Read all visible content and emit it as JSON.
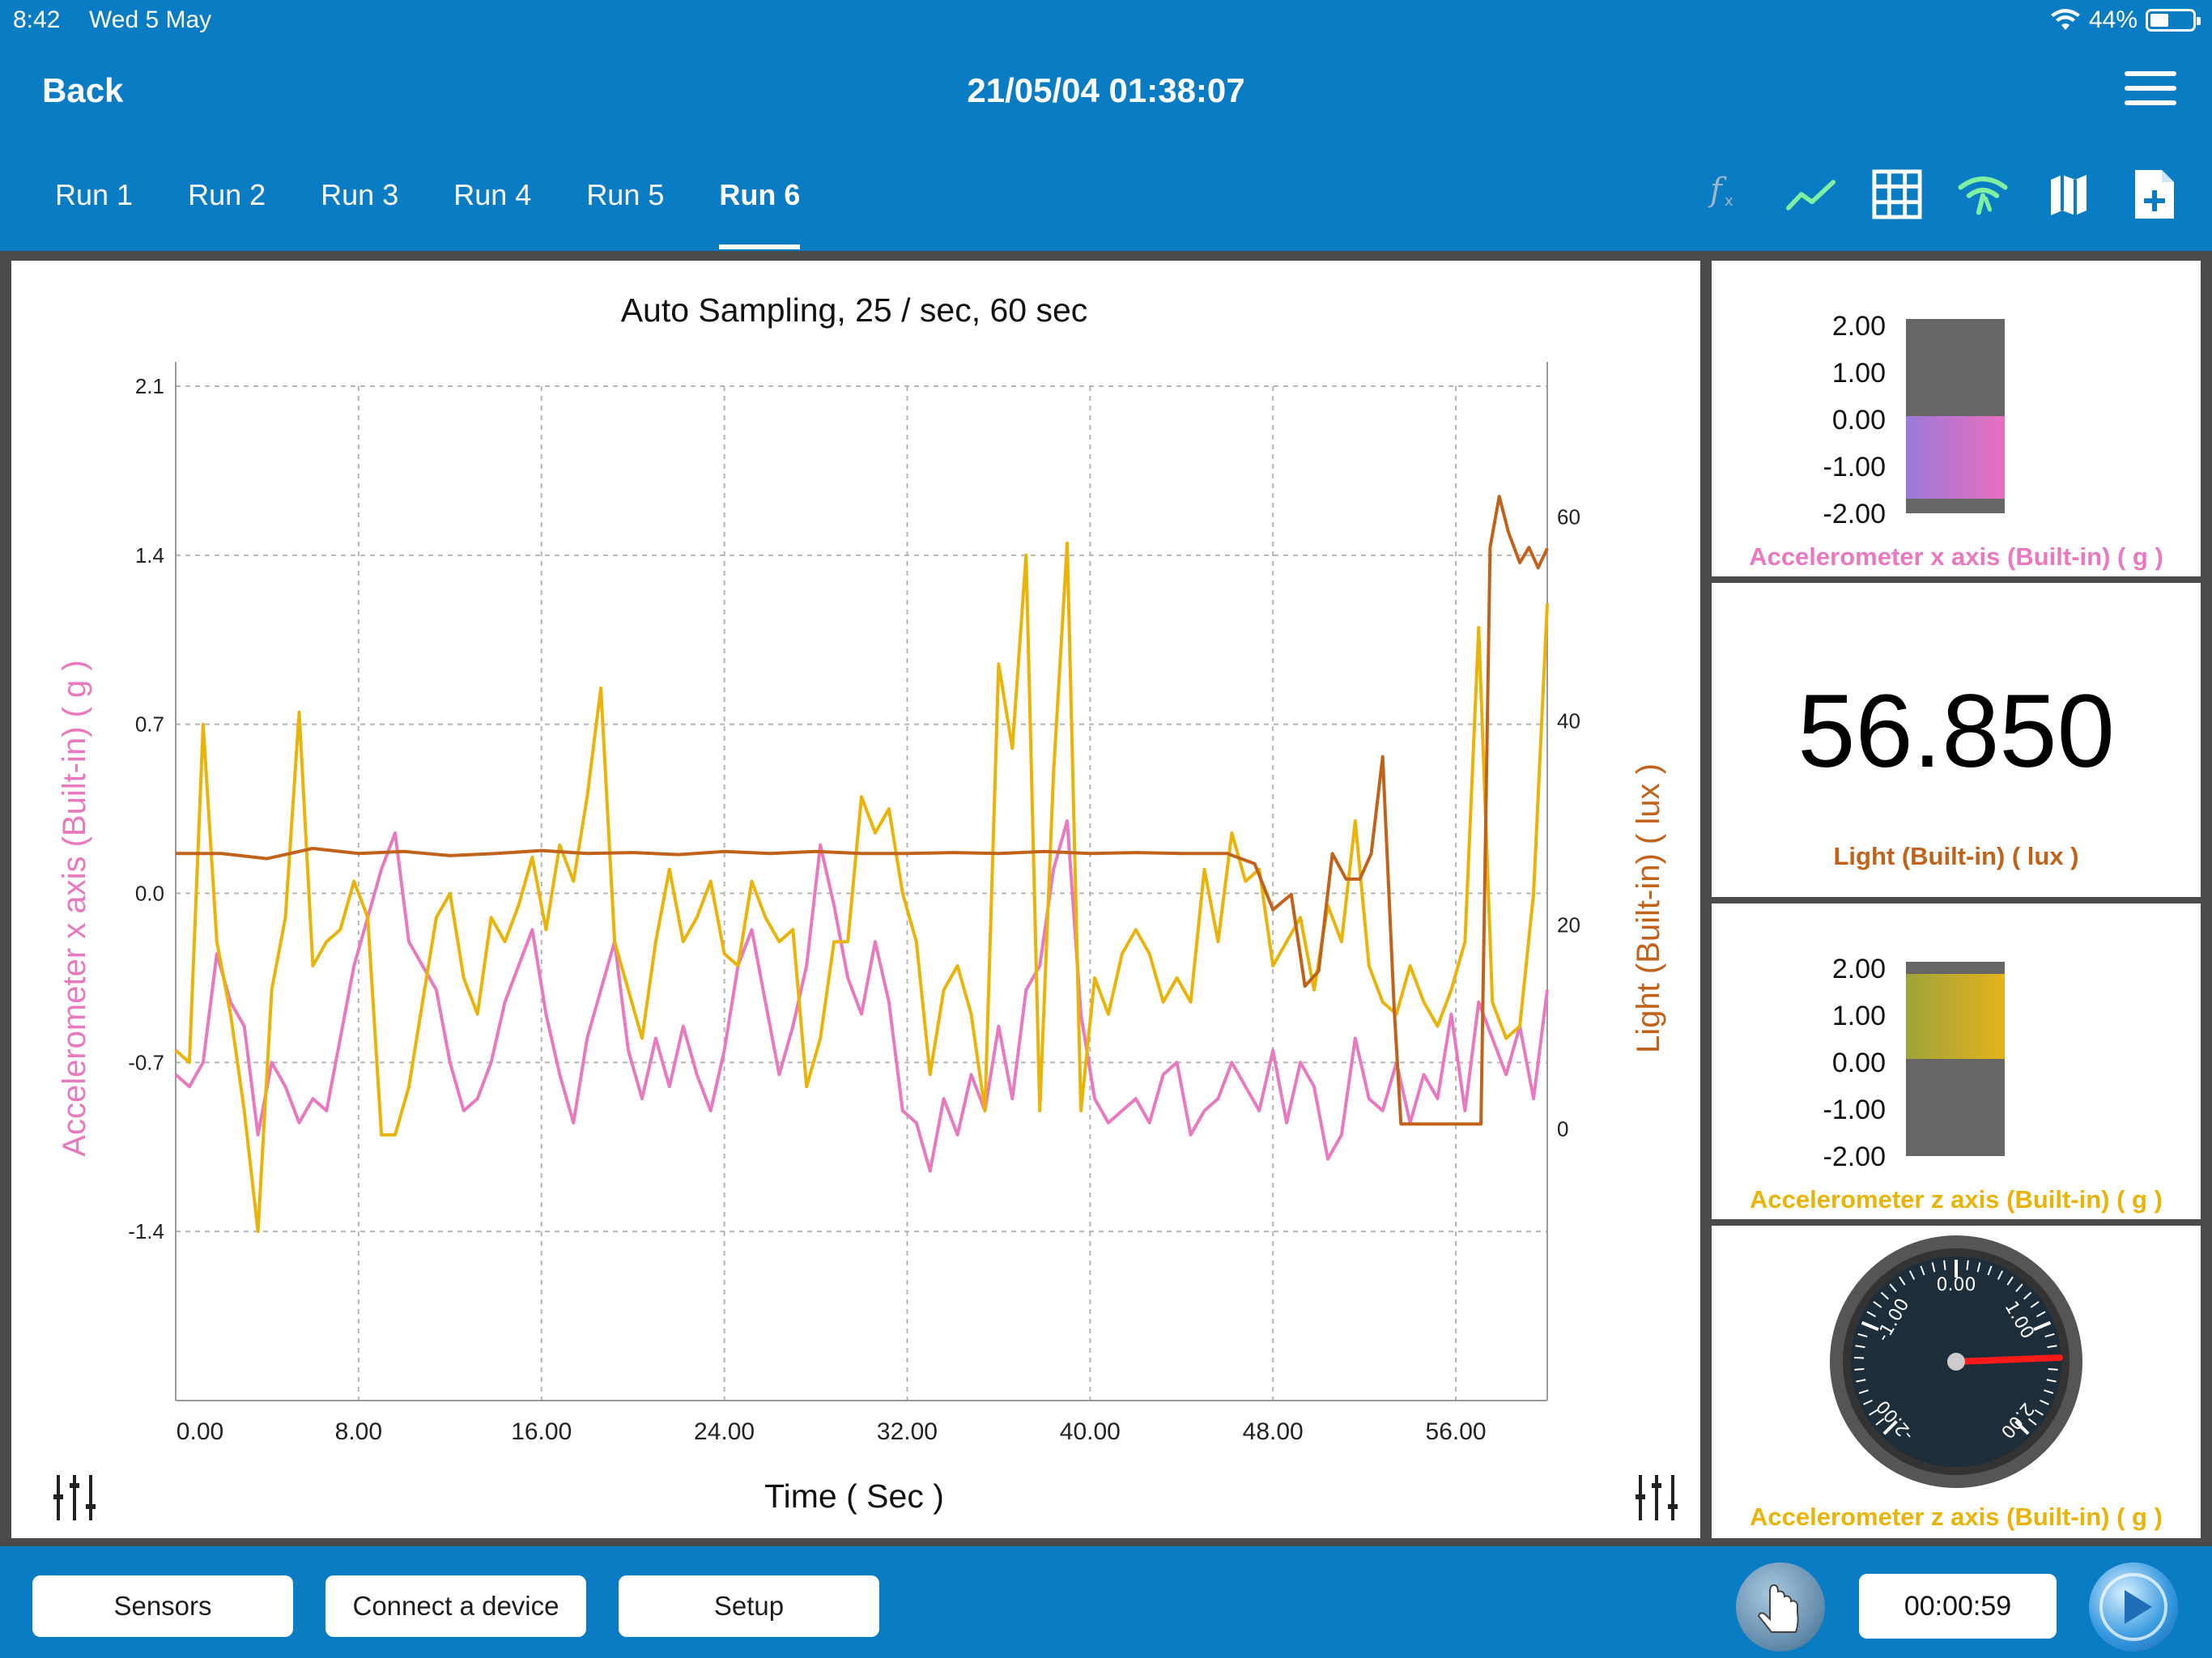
{
  "status": {
    "time": "8:42",
    "date": "Wed 5 May",
    "battery": "44%"
  },
  "nav": {
    "back": "Back",
    "title": "21/05/04 01:38:07"
  },
  "tabs": [
    {
      "label": "Run 1"
    },
    {
      "label": "Run 2"
    },
    {
      "label": "Run 3"
    },
    {
      "label": "Run 4"
    },
    {
      "label": "Run 5"
    },
    {
      "label": "Run 6"
    }
  ],
  "active_tab": 5,
  "toolbar": [
    "function-icon",
    "line-graph-icon",
    "table-grid-icon",
    "wireless-icon",
    "map-icon",
    "new-file-icon"
  ],
  "widgets": {
    "accel_x": {
      "label": "Accelerometer x axis (Built-in) ( g )",
      "ticks": [
        "2.00",
        "1.00",
        "0.00",
        "-1.00",
        "-2.00"
      ],
      "value": -1.7
    },
    "light": {
      "value_text": "56.850",
      "label": "Light (Built-in) ( lux )"
    },
    "accel_z_bar": {
      "label": "Accelerometer z axis (Built-in) ( g )",
      "ticks": [
        "2.00",
        "1.00",
        "0.00",
        "-1.00",
        "-2.00"
      ],
      "value": 1.75
    },
    "accel_z_gauge": {
      "label": "Accelerometer z axis (Built-in) ( g )",
      "ticks": [
        "0.00",
        "-1.00",
        "1.00",
        "-2.00",
        "2.00"
      ],
      "value": 1.3
    }
  },
  "bottom": {
    "sensors": "Sensors",
    "connect": "Connect a device",
    "setup": "Setup",
    "timer": "00:00:59"
  },
  "colors": {
    "accel_x": "#e879be",
    "accel_z": "#eab308",
    "light": "#c2621a",
    "brand": "#0a7cc4"
  },
  "chart_data": {
    "type": "line",
    "title": "Auto Sampling,  25 / sec,  60 sec",
    "xlabel": "Time ( Sec )",
    "ylabel_left": "Accelerometer x axis (Built-in) ( g )",
    "ylabel_right": "Light (Built-in) ( lux )",
    "xlim": [
      0,
      60
    ],
    "ylim_left": [
      -2.1,
      2.1
    ],
    "ylim_right": [
      -26.6,
      72.8
    ],
    "x_ticks": [
      "0.00",
      "8.00",
      "16.00",
      "24.00",
      "32.00",
      "40.00",
      "48.00",
      "56.00"
    ],
    "y_ticks_left": [
      "2.1",
      "1.4",
      "0.7",
      "0.0",
      "-0.7",
      "-1.4"
    ],
    "y_ticks_right": [
      "60",
      "40",
      "20",
      "0"
    ],
    "grid": true,
    "series": [
      {
        "name": "Accelerometer x axis (Built-in) ( g )",
        "axis": "left",
        "x": [
          0,
          0.6,
          1.2,
          1.8,
          2.4,
          3.0,
          3.6,
          4.2,
          4.8,
          5.4,
          6.0,
          6.6,
          7.2,
          7.8,
          8.4,
          9.0,
          9.6,
          10.2,
          10.8,
          11.4,
          12.0,
          12.6,
          13.2,
          13.8,
          14.4,
          15.0,
          15.6,
          16.2,
          16.8,
          17.4,
          18.0,
          18.6,
          19.2,
          19.8,
          20.4,
          21.0,
          21.6,
          22.2,
          22.8,
          23.4,
          24.0,
          24.6,
          25.2,
          25.8,
          26.4,
          27.0,
          27.6,
          28.2,
          28.8,
          29.4,
          30.0,
          30.6,
          31.2,
          31.8,
          32.4,
          33.0,
          33.6,
          34.2,
          34.8,
          35.4,
          36.0,
          36.6,
          37.2,
          37.8,
          38.4,
          39.0,
          39.6,
          40.2,
          40.8,
          41.4,
          42.0,
          42.6,
          43.2,
          43.8,
          44.4,
          45.0,
          45.6,
          46.2,
          46.8,
          47.4,
          48.0,
          48.6,
          49.2,
          49.8,
          50.4,
          51.0,
          51.6,
          52.2,
          52.8,
          53.4,
          54.0,
          54.6,
          55.2,
          55.8,
          56.4,
          57.0,
          57.6,
          58.2,
          58.8,
          59.4,
          60.0
        ],
        "y": [
          -0.75,
          -0.8,
          -0.7,
          -0.25,
          -0.45,
          -0.55,
          -1.0,
          -0.7,
          -0.8,
          -0.95,
          -0.85,
          -0.9,
          -0.6,
          -0.3,
          -0.1,
          0.1,
          0.25,
          -0.2,
          -0.3,
          -0.4,
          -0.7,
          -0.9,
          -0.85,
          -0.7,
          -0.45,
          -0.3,
          -0.15,
          -0.5,
          -0.75,
          -0.95,
          -0.6,
          -0.4,
          -0.2,
          -0.65,
          -0.85,
          -0.6,
          -0.8,
          -0.55,
          -0.75,
          -0.9,
          -0.65,
          -0.3,
          -0.15,
          -0.45,
          -0.75,
          -0.55,
          -0.3,
          0.2,
          -0.05,
          -0.35,
          -0.5,
          -0.2,
          -0.45,
          -0.9,
          -0.95,
          -1.15,
          -0.85,
          -1.0,
          -0.75,
          -0.9,
          -0.55,
          -0.85,
          -0.4,
          -0.3,
          0.1,
          0.3,
          -0.5,
          -0.85,
          -0.95,
          -0.9,
          -0.85,
          -0.95,
          -0.75,
          -0.7,
          -1.0,
          -0.9,
          -0.85,
          -0.7,
          -0.8,
          -0.9,
          -0.65,
          -0.95,
          -0.7,
          -0.8,
          -1.1,
          -1.0,
          -0.6,
          -0.85,
          -0.9,
          -0.7,
          -0.95,
          -0.75,
          -0.85,
          -0.5,
          -0.9,
          -0.45,
          -0.6,
          -0.75,
          -0.55,
          -0.85,
          -0.4
        ]
      },
      {
        "name": "Accelerometer z axis (Built-in) ( g )",
        "axis": "left",
        "x": [
          0,
          0.6,
          1.2,
          1.8,
          2.4,
          3.0,
          3.6,
          4.2,
          4.8,
          5.4,
          6.0,
          6.6,
          7.2,
          7.8,
          8.4,
          9.0,
          9.6,
          10.2,
          10.8,
          11.4,
          12.0,
          12.6,
          13.2,
          13.8,
          14.4,
          15.0,
          15.6,
          16.2,
          16.8,
          17.4,
          18.0,
          18.6,
          19.2,
          19.8,
          20.4,
          21.0,
          21.6,
          22.2,
          22.8,
          23.4,
          24.0,
          24.6,
          25.2,
          25.8,
          26.4,
          27.0,
          27.6,
          28.2,
          28.8,
          29.4,
          30.0,
          30.6,
          31.2,
          31.8,
          32.4,
          33.0,
          33.6,
          34.2,
          34.8,
          35.4,
          36.0,
          36.6,
          37.2,
          37.8,
          38.4,
          39.0,
          39.6,
          40.2,
          40.8,
          41.4,
          42.0,
          42.6,
          43.2,
          43.8,
          44.4,
          45.0,
          45.6,
          46.2,
          46.8,
          47.4,
          48.0,
          48.6,
          49.2,
          49.8,
          50.4,
          51.0,
          51.6,
          52.2,
          52.8,
          53.4,
          54.0,
          54.6,
          55.2,
          55.8,
          56.4,
          57.0,
          57.6,
          58.2,
          58.8,
          59.4,
          60.0
        ],
        "y": [
          -0.65,
          -0.7,
          0.7,
          -0.2,
          -0.5,
          -0.9,
          -1.4,
          -0.4,
          -0.1,
          0.75,
          -0.3,
          -0.2,
          -0.15,
          0.05,
          -0.1,
          -1.0,
          -1.0,
          -0.8,
          -0.45,
          -0.1,
          0.0,
          -0.35,
          -0.5,
          -0.1,
          -0.2,
          -0.05,
          0.15,
          -0.15,
          0.2,
          0.05,
          0.4,
          0.85,
          -0.2,
          -0.4,
          -0.6,
          -0.2,
          0.1,
          -0.2,
          -0.1,
          0.05,
          -0.25,
          -0.3,
          0.05,
          -0.1,
          -0.2,
          -0.15,
          -0.8,
          -0.6,
          -0.2,
          -0.2,
          0.4,
          0.25,
          0.35,
          0.0,
          -0.2,
          -0.75,
          -0.4,
          -0.3,
          -0.5,
          -0.9,
          0.95,
          0.6,
          1.4,
          -0.9,
          0.5,
          1.45,
          -0.9,
          -0.35,
          -0.5,
          -0.25,
          -0.15,
          -0.25,
          -0.45,
          -0.35,
          -0.45,
          0.1,
          -0.2,
          0.25,
          0.05,
          0.1,
          -0.3,
          -0.2,
          -0.1,
          -0.4,
          -0.05,
          -0.2,
          0.3,
          -0.3,
          -0.45,
          -0.5,
          -0.3,
          -0.45,
          -0.55,
          -0.4,
          -0.2,
          1.1,
          -0.45,
          -0.6,
          -0.55,
          0.0,
          1.2
        ]
      },
      {
        "name": "Light (Built-in) ( lux )",
        "axis": "right",
        "x": [
          0,
          2,
          4,
          6,
          8,
          10,
          12,
          14,
          16,
          18,
          20,
          22,
          24,
          26,
          28,
          30,
          32,
          34,
          36,
          38,
          40,
          42,
          44,
          46,
          47.2,
          48.0,
          48.8,
          49.4,
          50.0,
          50.6,
          51.2,
          51.8,
          52.3,
          52.8,
          53.3,
          53.6,
          54.0,
          54.5,
          55.0,
          55.5,
          56.0,
          56.6,
          57.1,
          57.5,
          57.9,
          58.3,
          58.8,
          59.2,
          59.6,
          60.0
        ],
        "y": [
          27,
          27,
          26.5,
          27.5,
          27,
          27.2,
          26.8,
          27,
          27.3,
          27,
          27.1,
          26.9,
          27.2,
          27,
          27.2,
          27,
          27,
          27.1,
          27,
          27.2,
          27,
          27.1,
          27,
          27,
          26,
          21.5,
          23,
          14,
          15.5,
          27,
          24.5,
          24.5,
          27,
          36.5,
          12,
          0.5,
          0.5,
          0.5,
          0.5,
          0.5,
          0.5,
          0.5,
          0.5,
          57,
          62,
          58.5,
          55.5,
          57,
          55,
          56.9
        ]
      }
    ]
  }
}
